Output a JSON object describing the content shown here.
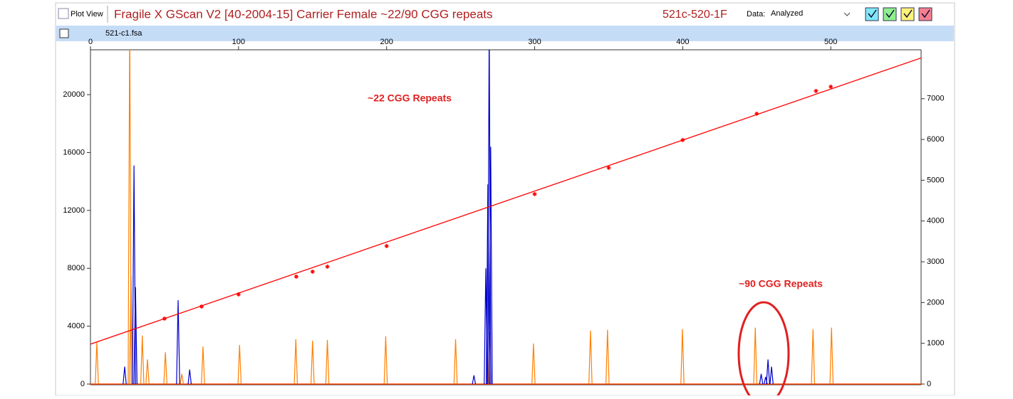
{
  "header": {
    "plot_view": "Plot View",
    "title": "Fragile X GScan V2 [40-2004-15] Carrier Female ~22/90 CGG repeats",
    "sample": "521c-520-1F",
    "data_label": "Data:",
    "data_value": "Analyzed"
  },
  "file": {
    "name": "521-c1.fsa"
  },
  "chart_data": {
    "type": "electropherogram",
    "xlim": [
      0,
      561
    ],
    "xticks": [
      0,
      100,
      200,
      300,
      400,
      500
    ],
    "ylim": [
      0,
      23100
    ],
    "yticks": [
      0,
      4000,
      8000,
      12000,
      16000,
      20000
    ],
    "y2lim": [
      0,
      8200
    ],
    "y2ticks": [
      0,
      1000,
      2000,
      3000,
      4000,
      5000,
      6000,
      7000
    ],
    "annotations": [
      "~22 CGG Repeats",
      "~90 CGG Repeats"
    ],
    "series": [
      {
        "color": "#ff8000",
        "x": [
          4.3,
          26.5,
          27.4,
          35,
          38.5,
          50.6,
          61.7,
          76,
          100.7,
          138.7,
          150,
          160,
          199.4,
          246.6,
          269.7,
          299.2,
          337.7,
          349.2,
          399.8,
          449,
          488,
          500.5
        ],
        "values": [
          2900,
          25000,
          7450,
          3350,
          1700,
          2200,
          700,
          2600,
          2700,
          3100,
          3000,
          3050,
          3300,
          3100,
          3600,
          2800,
          3700,
          3750,
          3800,
          3900,
          3800,
          3900
        ]
      },
      {
        "color": "#0000cc",
        "x": [
          23.1,
          29.4,
          30.4,
          59.2,
          67,
          259,
          267,
          268.4,
          269.3,
          270.3,
          453,
          456,
          457.6,
          460
        ],
        "values": [
          1200,
          15100,
          6700,
          5800,
          1000,
          600,
          8000,
          13800,
          25000,
          16400,
          700,
          500,
          1700,
          1200
        ]
      },
      {
        "color": "#ff0000",
        "axis": "y2",
        "x": [
          0,
          561
        ],
        "values": [
          980,
          8000
        ]
      },
      {
        "color": "#ff0000",
        "axis": "y2",
        "x": [
          50,
          75,
          100,
          139,
          150,
          160,
          200,
          300,
          350,
          400,
          450,
          490,
          500
        ],
        "values": [
          1605,
          1902,
          2199,
          2635,
          2757,
          2880,
          3386,
          4660,
          5305,
          5986,
          6632,
          7190,
          7295
        ]
      }
    ]
  }
}
